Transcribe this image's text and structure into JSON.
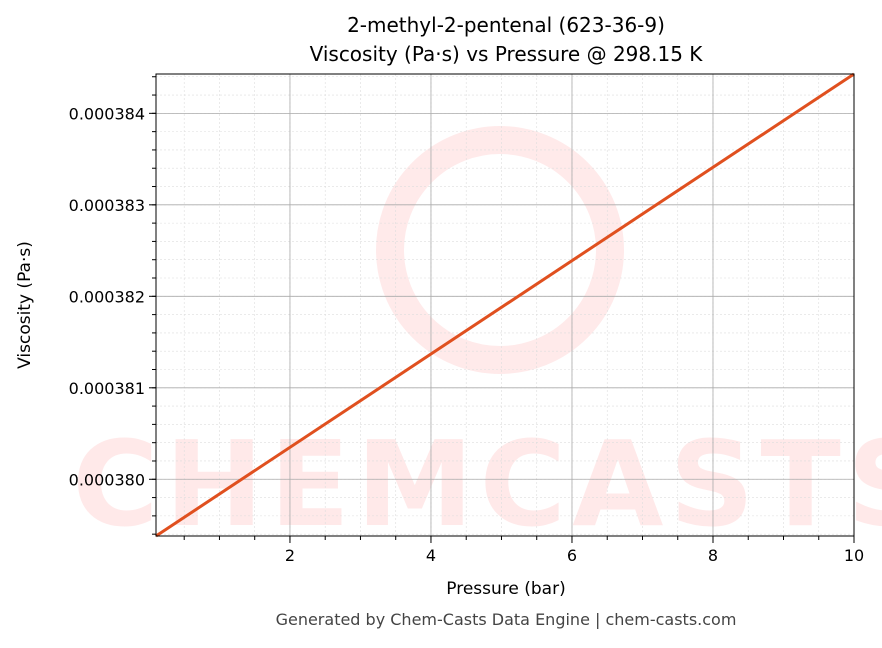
{
  "chart_data": {
    "type": "line",
    "title": "2-methyl-2-pentenal (623-36-9)",
    "subtitle": "Viscosity (Pa·s) vs Pressure @ 298.15 K",
    "xlabel": "Pressure (bar)",
    "ylabel": "Viscosity (Pa·s)",
    "xlim": [
      0.1,
      10
    ],
    "ylim": [
      0.00037938,
      0.00038443
    ],
    "xticks": [
      2,
      4,
      6,
      8,
      10
    ],
    "yticks": [
      0.00038,
      0.000381,
      0.000382,
      0.000383,
      0.000384
    ],
    "ytick_labels": [
      "0.000380",
      "0.000381",
      "0.000382",
      "0.000383",
      "0.000384"
    ],
    "grid": true,
    "series": [
      {
        "color": "#e0501f",
        "x": [
          0.1,
          10
        ],
        "y": [
          0.00037938,
          0.00038443
        ]
      }
    ],
    "watermark": "CHEMCASTS",
    "footer": "Generated by Chem-Casts Data Engine | chem-casts.com"
  }
}
